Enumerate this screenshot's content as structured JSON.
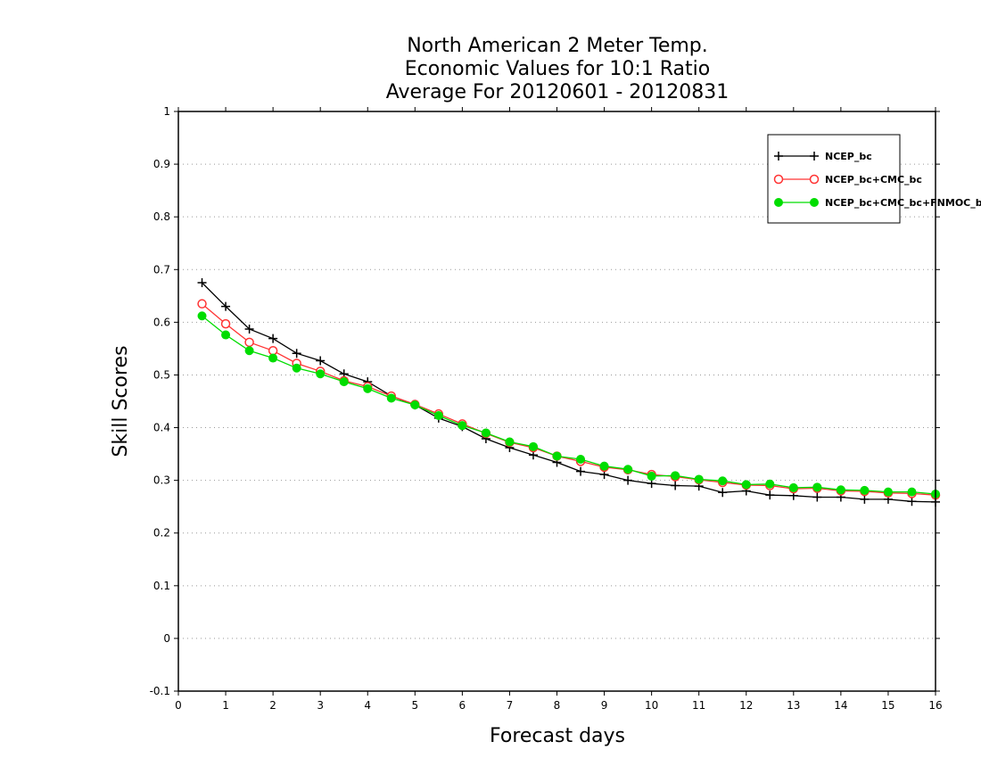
{
  "chart_data": {
    "type": "line",
    "title": "North American 2 Meter Temp.",
    "subtitle": "Economic Values for 10:1 Ratio",
    "subtitle2": "Average For 20120601 - 20120831",
    "xlabel": "Forecast days",
    "ylabel": "Skill Scores",
    "xlim": [
      0,
      16
    ],
    "ylim": [
      -0.1,
      1
    ],
    "xticks": [
      "0",
      "1",
      "2",
      "3",
      "4",
      "5",
      "6",
      "7",
      "8",
      "9",
      "10",
      "11",
      "12",
      "13",
      "14",
      "15",
      "16"
    ],
    "yticks": [
      "-0.1",
      "0",
      "0.1",
      "0.2",
      "0.3",
      "0.4",
      "0.5",
      "0.6",
      "0.7",
      "0.8",
      "0.9",
      "1"
    ],
    "grid": "horizontal dotted",
    "legend_position": "top-right",
    "x": [
      0.5,
      1,
      1.5,
      2,
      2.5,
      3,
      3.5,
      4,
      4.5,
      5,
      5.5,
      6,
      6.5,
      7,
      7.5,
      8,
      8.5,
      9,
      9.5,
      10,
      10.5,
      11,
      11.5,
      12,
      12.5,
      13,
      13.5,
      14,
      14.5,
      15,
      15.5,
      16
    ],
    "series": [
      {
        "name": "NCEP_bc",
        "color": "#000000",
        "marker": "plus",
        "values": [
          0.675,
          0.63,
          0.587,
          0.569,
          0.541,
          0.527,
          0.502,
          0.487,
          0.46,
          0.443,
          0.418,
          0.402,
          0.379,
          0.362,
          0.348,
          0.334,
          0.317,
          0.311,
          0.3,
          0.294,
          0.29,
          0.289,
          0.277,
          0.28,
          0.272,
          0.271,
          0.268,
          0.268,
          0.264,
          0.264,
          0.26,
          0.259
        ]
      },
      {
        "name": "NCEP_bc+CMC_bc",
        "color": "#ff3333",
        "marker": "open-circle",
        "values": [
          0.635,
          0.597,
          0.562,
          0.546,
          0.522,
          0.507,
          0.489,
          0.478,
          0.46,
          0.444,
          0.426,
          0.407,
          0.389,
          0.372,
          0.362,
          0.346,
          0.336,
          0.325,
          0.32,
          0.311,
          0.307,
          0.301,
          0.296,
          0.291,
          0.29,
          0.284,
          0.285,
          0.28,
          0.279,
          0.276,
          0.275,
          0.272
        ]
      },
      {
        "name": "NCEP_bc+CMC_bc+FNMOC_bc",
        "color": "#00dd00",
        "marker": "filled-circle",
        "values": [
          0.612,
          0.576,
          0.546,
          0.532,
          0.513,
          0.502,
          0.487,
          0.474,
          0.456,
          0.443,
          0.423,
          0.404,
          0.39,
          0.373,
          0.364,
          0.346,
          0.34,
          0.327,
          0.321,
          0.308,
          0.309,
          0.302,
          0.299,
          0.292,
          0.293,
          0.286,
          0.287,
          0.282,
          0.281,
          0.278,
          0.278,
          0.274
        ]
      }
    ]
  }
}
